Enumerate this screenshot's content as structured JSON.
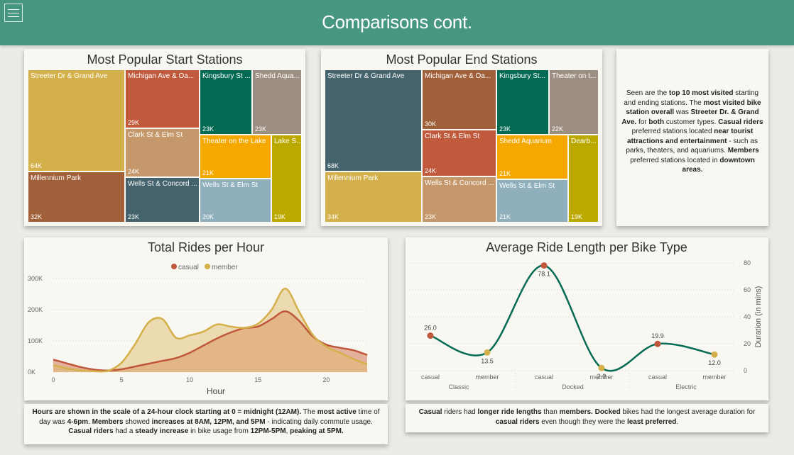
{
  "header": {
    "title": "Comparisons cont.",
    "menu_icon": "hamburger-icon"
  },
  "start_stations": {
    "title": "Most Popular Start Stations",
    "tiles": [
      {
        "name": "Streeter Dr & Grand Ave",
        "value": "64K",
        "color": "#d4b04a"
      },
      {
        "name": "Millennium Park",
        "value": "32K",
        "color": "#a0603a"
      },
      {
        "name": "Michigan Ave & Oa...",
        "value": "29K",
        "color": "#c15a3c"
      },
      {
        "name": "Clark St & Elm St",
        "value": "24K",
        "color": "#c4986a"
      },
      {
        "name": "Wells St & Concord ...",
        "value": "23K",
        "color": "#44636c"
      },
      {
        "name": "Kingsbury St ...",
        "value": "23K",
        "color": "#026953"
      },
      {
        "name": "Shedd Aqua...",
        "value": "23K",
        "color": "#9c8e82"
      },
      {
        "name": "Theater on the Lake",
        "value": "21K",
        "color": "#f5a900"
      },
      {
        "name": "Wells St & Elm St",
        "value": "20K",
        "color": "#8eafbb"
      },
      {
        "name": "Lake S...",
        "value": "19K",
        "color": "#bba900"
      }
    ]
  },
  "end_stations": {
    "title": "Most Popular End Stations",
    "tiles": [
      {
        "name": "Streeter Dr & Grand Ave",
        "value": "68K",
        "color": "#44636c"
      },
      {
        "name": "Millennium Park",
        "value": "34K",
        "color": "#d4b04a"
      },
      {
        "name": "Michigan Ave & Oa...",
        "value": "30K",
        "color": "#a0603a"
      },
      {
        "name": "Clark St & Elm St",
        "value": "24K",
        "color": "#c15a3c"
      },
      {
        "name": "Wells St & Concord ...",
        "value": "23K",
        "color": "#c4986a"
      },
      {
        "name": "Kingsbury St...",
        "value": "23K",
        "color": "#026953"
      },
      {
        "name": "Theater on t...",
        "value": "22K",
        "color": "#9c8e82"
      },
      {
        "name": "Shedd Aquarium",
        "value": "21K",
        "color": "#f5a900"
      },
      {
        "name": "Wells St & Elm St",
        "value": "21K",
        "color": "#8eafbb"
      },
      {
        "name": "Dearb...",
        "value": "19K",
        "color": "#bba900"
      }
    ]
  },
  "insight_top": {
    "parts": [
      {
        "t": "Seen are the ",
        "b": false
      },
      {
        "t": "top 10 most visited",
        "b": true
      },
      {
        "t": " starting and ending stations. The ",
        "b": false
      },
      {
        "t": "most visited bike station overall",
        "b": true
      },
      {
        "t": " was ",
        "b": false
      },
      {
        "t": "Streeter Dr. & Grand Ave.",
        "b": true
      },
      {
        "t": " for ",
        "b": false
      },
      {
        "t": "both",
        "b": true
      },
      {
        "t": " customer types. ",
        "b": false
      },
      {
        "t": "Casual riders",
        "b": true
      },
      {
        "t": " preferred stations located ",
        "b": false
      },
      {
        "t": "near tourist attractions and entertainment",
        "b": true
      },
      {
        "t": " - such as parks, theaters, and aquariums. ",
        "b": false
      },
      {
        "t": "Members",
        "b": true
      },
      {
        "t": " preferred stations located in ",
        "b": false
      },
      {
        "t": "downtown areas.",
        "b": true
      }
    ]
  },
  "rides_per_hour": {
    "title": "Total Rides per Hour",
    "legend": [
      {
        "name": "casual",
        "color": "#c0573a"
      },
      {
        "name": "member",
        "color": "#d4b04a"
      }
    ],
    "xlabel": "Hour",
    "y_ticks": [
      "0K",
      "100K",
      "200K",
      "300K"
    ],
    "x_ticks": [
      "0",
      "5",
      "10",
      "15",
      "20"
    ]
  },
  "bike_type": {
    "title": "Average Ride Length per Bike Type",
    "ylabel": "Duration (in mins)",
    "y_ticks": [
      "0",
      "20",
      "40",
      "60",
      "80"
    ],
    "categories": [
      "casual",
      "member",
      "casual",
      "member",
      "casual",
      "member"
    ],
    "groups": [
      "Classic",
      "Docked",
      "Electric"
    ],
    "value_labels": [
      "26.0",
      "13.5",
      "78.1",
      "2.0",
      "19.9",
      "12.0"
    ]
  },
  "insight_hour": {
    "parts": [
      {
        "t": "Hours are shown in the scale of a 24-hour clock starting at 0 = midnight (12AM).",
        "b": true
      },
      {
        "t": " The ",
        "b": false
      },
      {
        "t": "most active",
        "b": true
      },
      {
        "t": " time of day was ",
        "b": false
      },
      {
        "t": "4-6pm",
        "b": true
      },
      {
        "t": ". ",
        "b": false
      },
      {
        "t": "Members",
        "b": true
      },
      {
        "t": " showed ",
        "b": false
      },
      {
        "t": "increases at 8AM, 12PM, and 5PM",
        "b": true
      },
      {
        "t": " - indicating daily commute usage. ",
        "b": false
      },
      {
        "t": "Casual riders",
        "b": true
      },
      {
        "t": " had a ",
        "b": false
      },
      {
        "t": "steady increase",
        "b": true
      },
      {
        "t": " in bike usage from ",
        "b": false
      },
      {
        "t": "12PM-5PM",
        "b": true
      },
      {
        "t": ", ",
        "b": false
      },
      {
        "t": "peaking at 5PM.",
        "b": true
      }
    ]
  },
  "insight_bike": {
    "parts": [
      {
        "t": "Casual",
        "b": true
      },
      {
        "t": " riders had ",
        "b": false
      },
      {
        "t": "longer ride lengths",
        "b": true
      },
      {
        "t": " than ",
        "b": false
      },
      {
        "t": "members.",
        "b": true
      },
      {
        "t": " ",
        "b": false
      },
      {
        "t": "Docked",
        "b": true
      },
      {
        "t": " bikes had the longest average duration for ",
        "b": false
      },
      {
        "t": "casual riders",
        "b": true
      },
      {
        "t": " even though they were the ",
        "b": false
      },
      {
        "t": "least preferred",
        "b": true
      },
      {
        "t": ".",
        "b": false
      }
    ]
  },
  "chart_data": [
    {
      "type": "area",
      "title": "Total Rides per Hour",
      "xlabel": "Hour",
      "ylabel": "",
      "ylim": [
        0,
        300000
      ],
      "xlim": [
        0,
        23
      ],
      "x": [
        0,
        1,
        2,
        3,
        4,
        5,
        6,
        7,
        8,
        9,
        10,
        11,
        12,
        13,
        14,
        15,
        16,
        17,
        18,
        19,
        20,
        21,
        22,
        23
      ],
      "series": [
        {
          "name": "casual",
          "color": "#c0573a",
          "values": [
            40000,
            28000,
            16000,
            8000,
            5000,
            9000,
            18000,
            27000,
            36000,
            45000,
            62000,
            85000,
            108000,
            127000,
            141000,
            146000,
            170000,
            195000,
            165000,
            115000,
            88000,
            78000,
            70000,
            55000
          ]
        },
        {
          "name": "member",
          "color": "#d4b04a",
          "values": [
            22000,
            12000,
            6000,
            3000,
            4000,
            30000,
            90000,
            160000,
            170000,
            110000,
            118000,
            130000,
            153000,
            146000,
            142000,
            155000,
            200000,
            268000,
            195000,
            120000,
            82000,
            62000,
            42000,
            25000
          ]
        }
      ],
      "legend_position": "top-center",
      "grid": true
    },
    {
      "type": "line",
      "title": "Average Ride Length per Bike Type",
      "ylabel": "Duration (in mins)",
      "ylim": [
        0,
        80
      ],
      "categories": [
        "Classic casual",
        "Classic member",
        "Docked casual",
        "Docked member",
        "Electric casual",
        "Electric member"
      ],
      "values": [
        26.0,
        13.5,
        78.1,
        2.0,
        19.9,
        12.0
      ],
      "point_colors": [
        "#c0573a",
        "#d4b04a",
        "#c0573a",
        "#d4b04a",
        "#c0573a",
        "#d4b04a"
      ],
      "line_color": "#056b52",
      "grid": true
    }
  ]
}
